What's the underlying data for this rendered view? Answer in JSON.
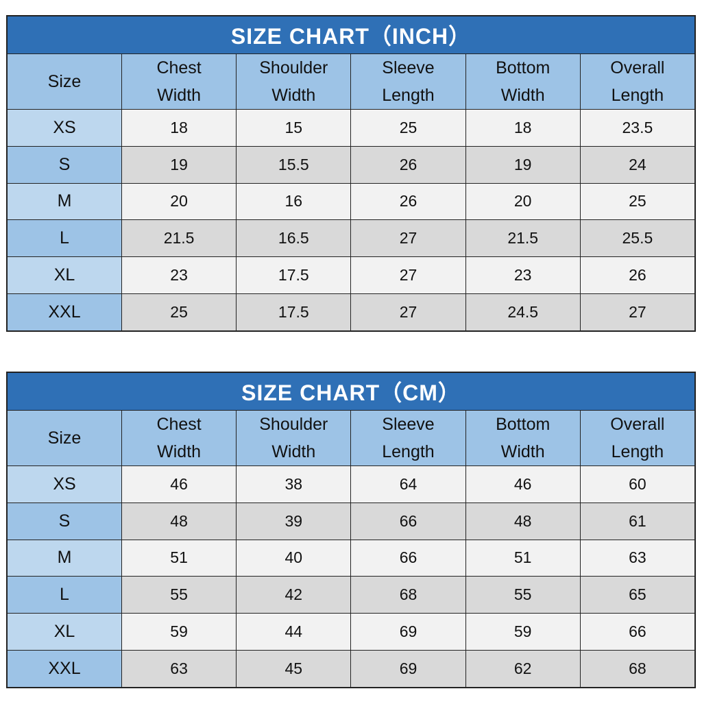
{
  "tables": [
    {
      "title": "SIZE CHART（INCH）",
      "header": [
        [
          "Size"
        ],
        [
          "Chest",
          "Width"
        ],
        [
          "Shoulder",
          "Width"
        ],
        [
          "Sleeve",
          "Length"
        ],
        [
          "Bottom",
          "Width"
        ],
        [
          "Overall",
          "Length"
        ]
      ],
      "rows": [
        [
          "XS",
          18,
          15,
          25,
          18,
          23.5
        ],
        [
          "S",
          19,
          15.5,
          26,
          19,
          24
        ],
        [
          "M",
          20,
          16,
          26,
          20,
          25
        ],
        [
          "L",
          21.5,
          16.5,
          27,
          21.5,
          25.5
        ],
        [
          "XL",
          23,
          17.5,
          27,
          23,
          26
        ],
        [
          "XXL",
          25,
          17.5,
          27,
          24.5,
          27
        ]
      ]
    },
    {
      "title": "SIZE CHART（CM）",
      "header": [
        [
          "Size"
        ],
        [
          "Chest",
          "Width"
        ],
        [
          "Shoulder",
          "Width"
        ],
        [
          "Sleeve",
          "Length"
        ],
        [
          "Bottom",
          "Width"
        ],
        [
          "Overall",
          "Length"
        ]
      ],
      "rows": [
        [
          "XS",
          46,
          38,
          64,
          46,
          60
        ],
        [
          "S",
          48,
          39,
          66,
          48,
          61
        ],
        [
          "M",
          51,
          40,
          66,
          51,
          63
        ],
        [
          "L",
          55,
          42,
          68,
          55,
          65
        ],
        [
          "XL",
          59,
          44,
          69,
          59,
          66
        ],
        [
          "XXL",
          63,
          45,
          69,
          62,
          68
        ]
      ]
    }
  ]
}
